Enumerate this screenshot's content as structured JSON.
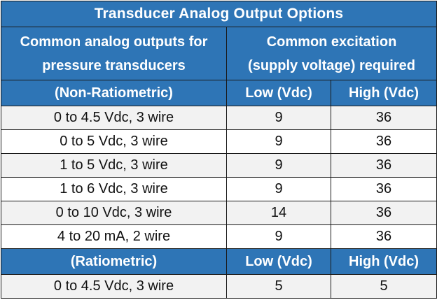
{
  "title": "Transducer Analog Output Options",
  "header": {
    "col1": [
      "Common analog outputs for",
      "pressure transducers"
    ],
    "col2": [
      "Common excitation",
      "(supply voltage) required"
    ]
  },
  "non_ratiometric": {
    "label": "(Non-Ratiometric)",
    "low_label": "Low (Vdc)",
    "high_label": "High (Vdc)",
    "rows": [
      {
        "output": "0 to 4.5 Vdc, 3 wire",
        "low": "9",
        "high": "36"
      },
      {
        "output": "0 to 5 Vdc, 3 wire",
        "low": "9",
        "high": "36"
      },
      {
        "output": "1 to 5 Vdc, 3 wire",
        "low": "9",
        "high": "36"
      },
      {
        "output": "1 to 6 Vdc, 3 wire",
        "low": "9",
        "high": "36"
      },
      {
        "output": "0 to 10 Vdc, 3 wire",
        "low": "14",
        "high": "36"
      },
      {
        "output": "4 to 20 mA, 2 wire",
        "low": "9",
        "high": "36"
      }
    ]
  },
  "ratiometric": {
    "label": "(Ratiometric)",
    "low_label": "Low (Vdc)",
    "high_label": "High (Vdc)",
    "rows": [
      {
        "output": "0 to 4.5 Vdc, 3 wire",
        "low": "5",
        "high": "5"
      }
    ]
  },
  "colors": {
    "header_bg": "#2e75b6",
    "header_text": "#ffffff",
    "row_shade": "#f2f2f2",
    "border": "#1a1a1a"
  }
}
